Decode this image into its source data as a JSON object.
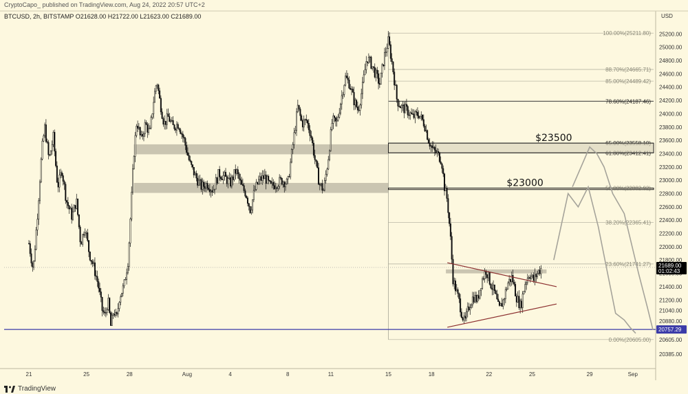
{
  "header": {
    "publisher": "CryptoCapo_ published on TradingView.com, Aug 24, 2022 20:57 UTC+2",
    "symbol_line": "BTCUSD, 2h, BITSTAMP  O21628.00  H21722.00  L21623.00  C21689.00"
  },
  "footer": {
    "brand": "TradingView"
  },
  "chart_data": {
    "type": "candlestick",
    "symbol": "BTCUSD",
    "interval": "2h",
    "exchange": "BITSTAMP",
    "ohlc_last": {
      "open": 21628.0,
      "high": 21722.0,
      "low": 21623.0,
      "close": 21689.0
    },
    "y_axis": {
      "label": "USD",
      "range": [
        20200,
        25400
      ],
      "ticks": [
        25200,
        25000,
        24800,
        24600,
        24400,
        24200,
        24000,
        23800,
        23600,
        23400,
        23200,
        23000,
        22800,
        22600,
        22400,
        22200,
        22000,
        21800,
        21600,
        21400,
        21200,
        21040,
        20880,
        20605,
        20385
      ],
      "tick_labels": [
        "25200.00",
        "25000.00",
        "24800.00",
        "24600.00",
        "24400.00",
        "24200.00",
        "24000.00",
        "23800.00",
        "23600.00",
        "23400.00",
        "23200.00",
        "23000.00",
        "22800.00",
        "22600.00",
        "22400.00",
        "22200.00",
        "22000.00",
        "21800.00",
        "21600.00",
        "21400.00",
        "21200.00",
        "21040.00",
        "20880.00",
        "20605.00",
        "20385.00"
      ]
    },
    "x_axis": {
      "tick_labels": [
        "21",
        "25",
        "28",
        "Aug",
        "4",
        "8",
        "11",
        "15",
        "18",
        "22",
        "25",
        "29",
        "Sep"
      ],
      "tick_days": [
        0,
        4,
        7,
        11,
        14,
        18,
        21,
        25,
        28,
        32,
        35,
        39,
        42
      ]
    },
    "current_price": {
      "label": "21689.00",
      "countdown": "01:02:43",
      "color": "#000000"
    },
    "support_line": {
      "value": 20757.29,
      "label": "20757.29",
      "color": "#3b3ba8"
    },
    "zones": [
      {
        "low": 23412.41,
        "high": 23558.1,
        "label": "$23500",
        "label_day": 36.5
      },
      {
        "low": 22860,
        "high": 22882.92,
        "label": "$23000",
        "label_day": 34.5
      }
    ],
    "gray_zones": [
      {
        "low": 23390,
        "high": 23540,
        "from_day": 7.3,
        "to_day": 25
      },
      {
        "low": 22810,
        "high": 22960,
        "from_day": 7.3,
        "to_day": 25
      },
      {
        "low": 21600,
        "high": 21660,
        "from_day": 29,
        "to_day": 36
      }
    ],
    "fib_levels": [
      {
        "ratio": "100.00%",
        "value": 25211.8,
        "label": "100.00%(25211.80)"
      },
      {
        "ratio": "88.70%",
        "value": 24665.71,
        "label": "88.70%(24665.71)"
      },
      {
        "ratio": "85.00%",
        "value": 24489.42,
        "label": "85.00%(24489.42)"
      },
      {
        "ratio": "78.60%",
        "value": 24187.46,
        "label": "78.60%(24187.46)"
      },
      {
        "ratio": "65.00%",
        "value": 23558.1,
        "label": "65.00%(23558.10)"
      },
      {
        "ratio": "61.80%",
        "value": 23412.41,
        "label": "61.80%(23412.41)"
      },
      {
        "ratio": "50.00%",
        "value": 22882.92,
        "label": "50.00%(22882.92)"
      },
      {
        "ratio": "38.20%",
        "value": 22365.41,
        "label": "38.20%(22365.41)"
      },
      {
        "ratio": "23.60%",
        "value": 21741.27,
        "label": "23.60%(21741.27)"
      },
      {
        "ratio": "0.00%",
        "value": 20605.0,
        "label": "0.00%(20605.00)"
      }
    ],
    "triangle": {
      "upper": [
        [
          29.1,
          21760
        ],
        [
          36.7,
          21400
        ]
      ],
      "lower": [
        [
          29.1,
          20790
        ],
        [
          36.7,
          21140
        ]
      ],
      "color": "#8b2e2e"
    },
    "projections": [
      {
        "points": [
          [
            36.5,
            21800
          ],
          [
            37.5,
            22800
          ],
          [
            38.2,
            22600
          ],
          [
            38.9,
            22900
          ],
          [
            39.6,
            22300
          ],
          [
            40.8,
            21000
          ],
          [
            41.4,
            20900
          ],
          [
            41.8,
            20790
          ],
          [
            42.2,
            20700
          ]
        ]
      },
      {
        "points": [
          [
            37.8,
            22900
          ],
          [
            39.0,
            23500
          ],
          [
            39.5,
            23400
          ],
          [
            40.0,
            23200
          ],
          [
            40.6,
            22800
          ],
          [
            41.4,
            22500
          ],
          [
            42.4,
            21600
          ],
          [
            43.0,
            21100
          ],
          [
            43.4,
            20750
          ]
        ]
      }
    ],
    "price_path": [
      [
        0,
        22050
      ],
      [
        0.3,
        21650
      ],
      [
        0.6,
        22500
      ],
      [
        0.9,
        23450
      ],
      [
        1.1,
        23800
      ],
      [
        1.4,
        23300
      ],
      [
        1.7,
        23650
      ],
      [
        2.0,
        22900
      ],
      [
        2.3,
        23150
      ],
      [
        2.6,
        22700
      ],
      [
        3.0,
        22450
      ],
      [
        3.3,
        22700
      ],
      [
        3.6,
        22050
      ],
      [
        3.9,
        22300
      ],
      [
        4.2,
        21900
      ],
      [
        4.5,
        21700
      ],
      [
        4.8,
        21450
      ],
      [
        5.1,
        21050
      ],
      [
        5.3,
        20950
      ],
      [
        5.5,
        21200
      ],
      [
        5.7,
        20800
      ],
      [
        5.9,
        21050
      ],
      [
        6.1,
        20900
      ],
      [
        6.3,
        21250
      ],
      [
        6.6,
        21400
      ],
      [
        6.9,
        21800
      ],
      [
        7.1,
        22600
      ],
      [
        7.3,
        23400
      ],
      [
        7.5,
        23900
      ],
      [
        7.8,
        23600
      ],
      [
        8.1,
        23850
      ],
      [
        8.4,
        23700
      ],
      [
        8.7,
        24250
      ],
      [
        8.9,
        24500
      ],
      [
        9.1,
        24200
      ],
      [
        9.4,
        23850
      ],
      [
        9.7,
        23950
      ],
      [
        10.0,
        23800
      ],
      [
        10.4,
        23850
      ],
      [
        10.8,
        23600
      ],
      [
        11.2,
        23250
      ],
      [
        11.6,
        23050
      ],
      [
        12.0,
        22900
      ],
      [
        12.4,
        22950
      ],
      [
        12.8,
        22850
      ],
      [
        13.2,
        23100
      ],
      [
        13.6,
        23050
      ],
      [
        14.0,
        22950
      ],
      [
        14.4,
        23150
      ],
      [
        14.8,
        22900
      ],
      [
        15.1,
        22800
      ],
      [
        15.4,
        22550
      ],
      [
        15.7,
        22850
      ],
      [
        16.0,
        23000
      ],
      [
        16.4,
        23050
      ],
      [
        16.8,
        22900
      ],
      [
        17.2,
        22950
      ],
      [
        17.6,
        23000
      ],
      [
        18.0,
        22950
      ],
      [
        18.4,
        23600
      ],
      [
        18.7,
        24100
      ],
      [
        19.0,
        23850
      ],
      [
        19.3,
        23900
      ],
      [
        19.6,
        23700
      ],
      [
        19.9,
        23300
      ],
      [
        20.2,
        22950
      ],
      [
        20.5,
        22850
      ],
      [
        20.8,
        23300
      ],
      [
        21.1,
        23900
      ],
      [
        21.4,
        23850
      ],
      [
        21.7,
        24200
      ],
      [
        22.0,
        24550
      ],
      [
        22.3,
        24450
      ],
      [
        22.6,
        24200
      ],
      [
        22.9,
        24050
      ],
      [
        23.2,
        24400
      ],
      [
        23.5,
        24850
      ],
      [
        23.8,
        24750
      ],
      [
        24.1,
        24600
      ],
      [
        24.4,
        24450
      ],
      [
        24.7,
        24850
      ],
      [
        25.0,
        25100
      ],
      [
        25.3,
        24700
      ],
      [
        25.6,
        24200
      ],
      [
        25.9,
        24100
      ],
      [
        26.3,
        24050
      ],
      [
        26.7,
        23950
      ],
      [
        27.1,
        24000
      ],
      [
        27.5,
        23850
      ],
      [
        27.8,
        23600
      ],
      [
        28.1,
        23450
      ],
      [
        28.4,
        23400
      ],
      [
        28.7,
        23300
      ],
      [
        28.9,
        22900
      ],
      [
        29.1,
        22700
      ],
      [
        29.3,
        22200
      ],
      [
        29.5,
        21500
      ],
      [
        29.7,
        21350
      ],
      [
        29.9,
        21200
      ],
      [
        30.1,
        21000
      ],
      [
        30.3,
        20850
      ],
      [
        30.6,
        21100
      ],
      [
        30.9,
        21250
      ],
      [
        31.2,
        21200
      ],
      [
        31.5,
        21500
      ],
      [
        31.8,
        21650
      ],
      [
        32.1,
        21450
      ],
      [
        32.4,
        21300
      ],
      [
        32.7,
        21050
      ],
      [
        33.0,
        21200
      ],
      [
        33.3,
        21450
      ],
      [
        33.6,
        21550
      ],
      [
        33.9,
        21250
      ],
      [
        34.2,
        21100
      ],
      [
        34.5,
        21450
      ],
      [
        34.8,
        21600
      ],
      [
        35.1,
        21500
      ],
      [
        35.4,
        21620
      ],
      [
        35.7,
        21689
      ]
    ]
  }
}
